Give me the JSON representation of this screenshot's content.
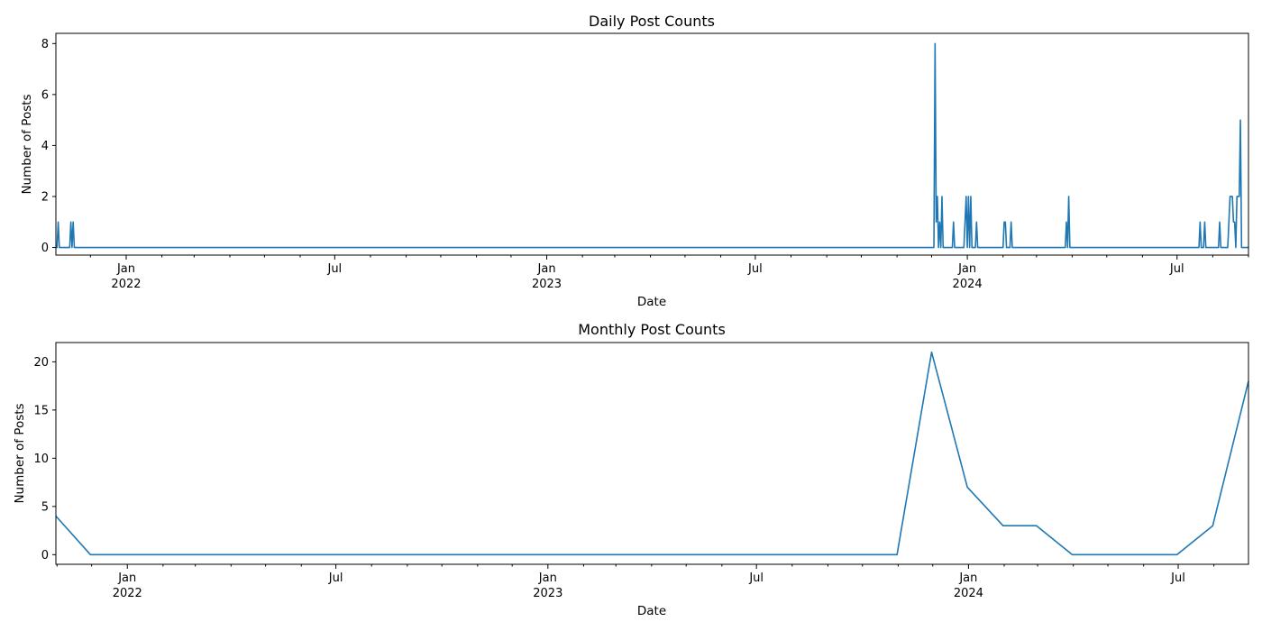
{
  "chart_data": [
    {
      "type": "line",
      "title": "Daily Post Counts",
      "xlabel": "Date",
      "ylabel": "Number of Posts",
      "xlim": [
        "2021-11-01",
        "2024-09-01"
      ],
      "ylim": [
        -0.3,
        8.4
      ],
      "yticks": [
        0,
        2,
        4,
        6,
        8
      ],
      "grid": false,
      "color": "#1f77b4",
      "x_major_ticks": [
        {
          "date": "2022-01-01",
          "label": "Jan",
          "year": "2022"
        },
        {
          "date": "2022-07-01",
          "label": "Jul",
          "year": ""
        },
        {
          "date": "2023-01-01",
          "label": "Jan",
          "year": "2023"
        },
        {
          "date": "2023-07-01",
          "label": "Jul",
          "year": ""
        },
        {
          "date": "2024-01-01",
          "label": "Jan",
          "year": "2024"
        },
        {
          "date": "2024-07-01",
          "label": "Jul",
          "year": ""
        }
      ],
      "series": [
        {
          "x": [
            "2021-11-01",
            "2021-11-02",
            "2021-11-03",
            "2021-11-04",
            "2021-11-05",
            "2021-11-13",
            "2021-11-14",
            "2021-11-15",
            "2021-11-16",
            "2021-11-17",
            "2023-12-03",
            "2023-12-04",
            "2023-12-05",
            "2023-12-06",
            "2023-12-07",
            "2023-12-08",
            "2023-12-09",
            "2023-12-10",
            "2023-12-11",
            "2023-12-12",
            "2023-12-13",
            "2023-12-14",
            "2023-12-19",
            "2023-12-20",
            "2023-12-21",
            "2023-12-26",
            "2023-12-29",
            "2023-12-30",
            "2023-12-31",
            "2024-01-01",
            "2024-01-02",
            "2024-01-03",
            "2024-01-04",
            "2024-01-05",
            "2024-01-08",
            "2024-01-09",
            "2024-01-10",
            "2024-02-01",
            "2024-02-02",
            "2024-02-03",
            "2024-02-04",
            "2024-02-05",
            "2024-02-07",
            "2024-02-08",
            "2024-02-09",
            "2024-03-26",
            "2024-03-27",
            "2024-03-28",
            "2024-03-29",
            "2024-03-30",
            "2024-07-20",
            "2024-07-21",
            "2024-07-22",
            "2024-07-23",
            "2024-07-24",
            "2024-07-25",
            "2024-07-26",
            "2024-08-06",
            "2024-08-07",
            "2024-08-08",
            "2024-08-14",
            "2024-08-15",
            "2024-08-16",
            "2024-08-17",
            "2024-08-18",
            "2024-08-19",
            "2024-08-20",
            "2024-08-21",
            "2024-08-22",
            "2024-08-23",
            "2024-08-24",
            "2024-08-25",
            "2024-08-26",
            "2024-08-27",
            "2024-08-28",
            "2024-08-29",
            "2024-08-30",
            "2024-08-31",
            "2024-09-01"
          ],
          "y": [
            0,
            0,
            1,
            0,
            0,
            0,
            1,
            0,
            1,
            0,
            0,
            8,
            1,
            2,
            0,
            1,
            0,
            2,
            0,
            0,
            0,
            0,
            0,
            1,
            0,
            0,
            0,
            1,
            2,
            0,
            2,
            0,
            2,
            0,
            0,
            1,
            0,
            0,
            1,
            1,
            0,
            0,
            0,
            1,
            0,
            0,
            1,
            0,
            2,
            0,
            0,
            1,
            0,
            0,
            0,
            1,
            0,
            0,
            1,
            0,
            0,
            1,
            2,
            2,
            2,
            1,
            1,
            0,
            2,
            2,
            2,
            5,
            0,
            0,
            0,
            0,
            0,
            0,
            0
          ]
        }
      ]
    },
    {
      "type": "line",
      "title": "Monthly Post Counts",
      "xlabel": "Date",
      "ylabel": "Number of Posts",
      "xlim": [
        "2021-10-31",
        "2024-08-31"
      ],
      "ylim": [
        -1,
        22
      ],
      "yticks": [
        0,
        5,
        10,
        15,
        20
      ],
      "grid": false,
      "color": "#1f77b4",
      "x_major_ticks": [
        {
          "date": "2022-01-01",
          "label": "Jan",
          "year": "2022"
        },
        {
          "date": "2022-07-01",
          "label": "Jul",
          "year": ""
        },
        {
          "date": "2023-01-01",
          "label": "Jan",
          "year": "2023"
        },
        {
          "date": "2023-07-01",
          "label": "Jul",
          "year": ""
        },
        {
          "date": "2024-01-01",
          "label": "Jan",
          "year": "2024"
        },
        {
          "date": "2024-07-01",
          "label": "Jul",
          "year": ""
        }
      ],
      "series": [
        {
          "x": [
            "2021-10-31",
            "2021-11-30",
            "2023-10-31",
            "2023-11-30",
            "2023-12-31",
            "2024-01-31",
            "2024-02-29",
            "2024-03-31",
            "2024-06-30",
            "2024-07-31",
            "2024-08-31"
          ],
          "y": [
            4,
            0,
            0,
            21,
            7,
            3,
            3,
            0,
            0,
            3,
            18
          ]
        }
      ]
    }
  ]
}
